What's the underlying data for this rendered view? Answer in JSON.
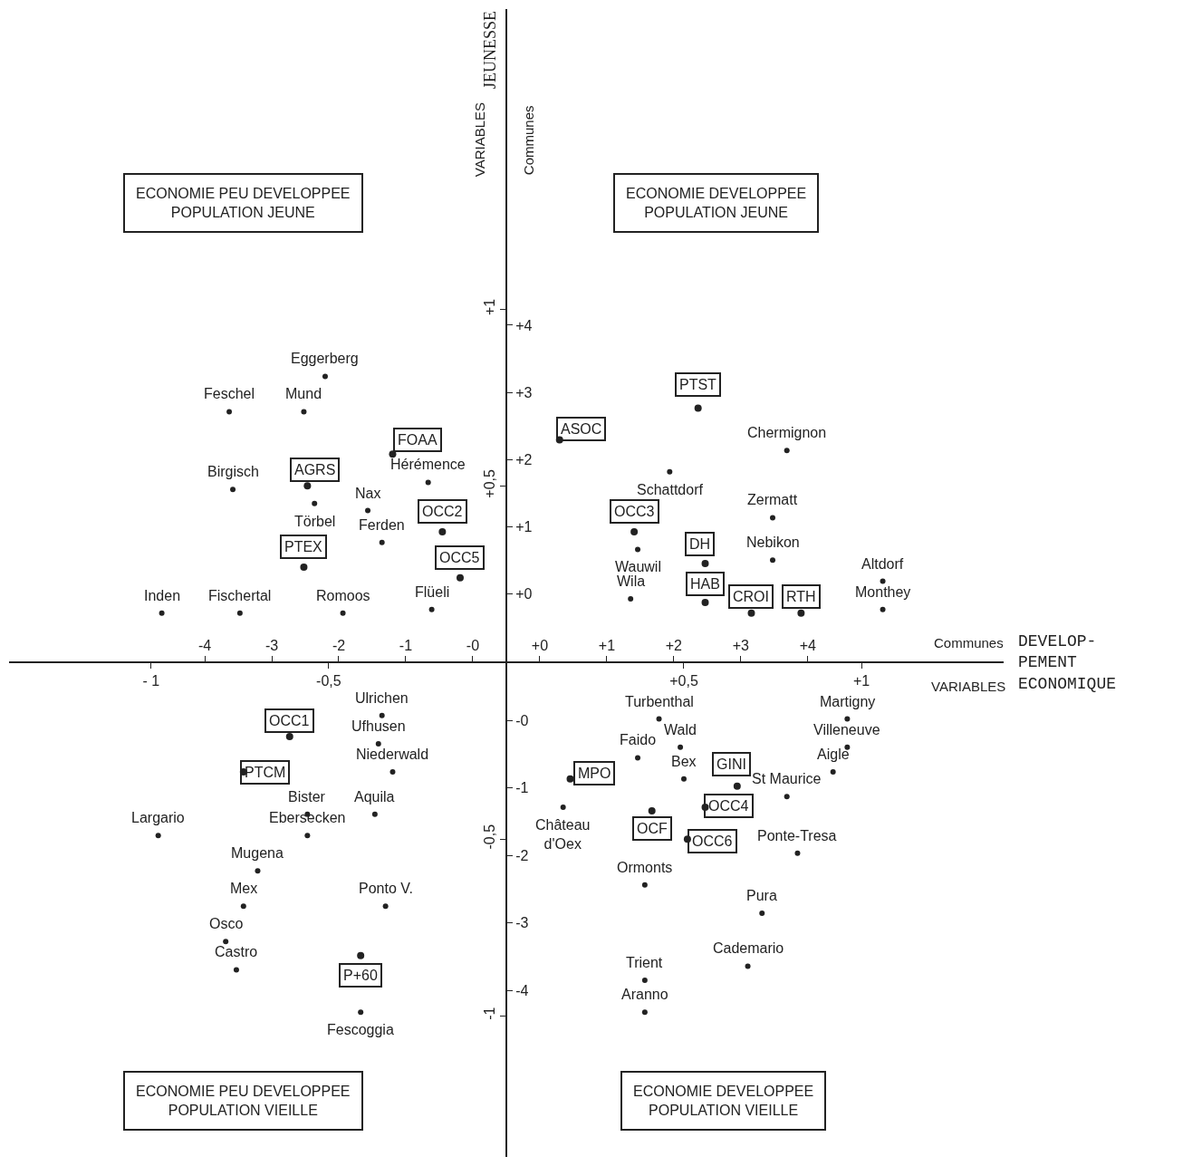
{
  "chart_data": {
    "type": "scatter",
    "xlabel": "VARIABLES",
    "x2label": "Communes",
    "ylabel": "VARIABLES",
    "y2label": "Communes",
    "xlim": [
      -1.4,
      1.4
    ],
    "ylim": [
      -1.4,
      1.85
    ],
    "x2lim": [
      -7.42,
      7.42
    ],
    "y2lim": [
      -8.39,
      8.71
    ],
    "y3lim": [
      -6.47,
      10.55
    ],
    "xticks": [
      {
        "value": -1,
        "label": "- 1"
      },
      {
        "value": -0.5,
        "label": "-0,5"
      },
      {
        "value": 0.5,
        "label": "+0,5"
      },
      {
        "value": 1,
        "label": "+1"
      }
    ],
    "yticks": [
      {
        "value": -1,
        "label": "-1"
      },
      {
        "value": -0.5,
        "label": "-0,5"
      },
      {
        "value": 0.5,
        "label": "+0,5"
      },
      {
        "value": 1,
        "label": "+1"
      }
    ],
    "x2ticks": [
      {
        "value": -4.5,
        "label": "-4"
      },
      {
        "value": -3.5,
        "label": "-3"
      },
      {
        "value": -2.5,
        "label": "-2"
      },
      {
        "value": -1.5,
        "label": "-1"
      },
      {
        "value": -0.5,
        "label": "-0"
      },
      {
        "value": 0.5,
        "label": "+0"
      },
      {
        "value": 1.5,
        "label": "+1"
      },
      {
        "value": 2.5,
        "label": "+2"
      },
      {
        "value": 3.5,
        "label": "+3"
      },
      {
        "value": 4.5,
        "label": "+4"
      }
    ],
    "y2ticks": [
      {
        "value": 0,
        "label": "+0"
      },
      {
        "value": 1,
        "label": "+1"
      },
      {
        "value": 2,
        "label": "+2"
      },
      {
        "value": 3,
        "label": "+3"
      },
      {
        "value": 4,
        "label": "+4"
      }
    ],
    "y3ticks": [
      -4,
      -3,
      -2,
      -1,
      {
        "value": 0,
        "label": "-0"
      }
    ],
    "grid": false,
    "marker": "circle",
    "series": [
      {
        "color": "#222222",
        "x": [
          0.54,
          0.15,
          -0.32,
          -0.56,
          -0.18,
          -0.57,
          -0.13,
          0.36,
          0.56,
          0.56,
          0.69,
          0.83,
          -0.61,
          -0.74,
          0.18,
          0.65,
          0.56,
          0.41,
          0.51,
          -0.41
        ],
        "values": [
          0.72,
          0.63,
          0.59,
          0.5,
          0.37,
          0.27,
          0.24,
          0.37,
          0.28,
          0.17,
          0.14,
          0.14,
          -0.21,
          -0.31,
          -0.33,
          -0.35,
          -0.41,
          -0.42,
          -0.5,
          -0.83
        ]
      },
      {
        "color": "#222222",
        "x": [
          -0.51,
          -0.78,
          -0.57,
          -0.77,
          -0.54,
          -0.22,
          -0.39,
          -0.35,
          -0.97,
          -0.75,
          -0.46,
          -0.21,
          0.46,
          0.79,
          0.75,
          0.37,
          0.75,
          0.35,
          1.06,
          1.06,
          -0.35,
          -0.36,
          -0.32,
          -0.56,
          -0.37,
          -0.56,
          -0.98,
          -0.7,
          -0.74,
          -0.34,
          -0.79,
          -0.76,
          -0.41,
          0.43,
          0.96,
          0.96,
          0.92,
          0.49,
          0.37,
          0.5,
          0.79,
          0.16,
          0.82,
          0.39,
          0.72,
          0.68,
          0.39,
          0.39
        ],
        "values": [
          0.81,
          0.71,
          0.71,
          0.49,
          0.45,
          0.51,
          0.43,
          0.34,
          0.14,
          0.14,
          0.14,
          0.15,
          0.54,
          0.6,
          0.41,
          0.32,
          0.29,
          0.18,
          0.23,
          0.15,
          -0.15,
          -0.23,
          -0.31,
          -0.43,
          -0.43,
          -0.49,
          -0.49,
          -0.59,
          -0.69,
          -0.69,
          -0.79,
          -0.87,
          -0.99,
          -0.16,
          -0.16,
          -0.24,
          -0.31,
          -0.24,
          -0.27,
          -0.33,
          -0.38,
          -0.41,
          -0.54,
          -0.63,
          -0.71,
          -0.86,
          -0.9,
          -0.99
        ]
      }
    ],
    "annotations": [
      "JEUNESSE",
      "DEVELOP-\nPEMENT\nECONOMIQUE",
      "ECONOMIE PEU DEVELOPPEE\nPOPULATION JEUNE",
      "ECONOMIE DEVELOPPEE\nPOPULATION JEUNE",
      "ECONOMIE PEU DEVELOPPEE\nPOPULATION VIEILLE",
      "ECONOMIE DEVELOPPEE\nPOPULATION VIEILLE",
      {
        "text": "PTST",
        "x": 0.54,
        "y": 0.72
      },
      {
        "text": "ASOC",
        "x": 0.15,
        "y": 0.63
      },
      {
        "text": "FOAA",
        "x": -0.32,
        "y": 0.59
      },
      {
        "text": "AGRS",
        "x": -0.56,
        "y": 0.5
      },
      {
        "text": "OCC2",
        "x": -0.18,
        "y": 0.37
      },
      {
        "text": "PTEX",
        "x": -0.57,
        "y": 0.27
      },
      {
        "text": "OCC5",
        "x": -0.13,
        "y": 0.24
      },
      {
        "text": "OCC3",
        "x": 0.36,
        "y": 0.37
      },
      {
        "text": "DH",
        "x": 0.56,
        "y": 0.28
      },
      {
        "text": "HAB",
        "x": 0.56,
        "y": 0.17
      },
      {
        "text": "CROI",
        "x": 0.69,
        "y": 0.14
      },
      {
        "text": "RTH",
        "x": 0.83,
        "y": 0.14
      },
      {
        "text": "OCC1",
        "x": -0.61,
        "y": -0.21
      },
      {
        "text": "PTCM",
        "x": -0.74,
        "y": -0.31
      },
      {
        "text": "MPO",
        "x": 0.18,
        "y": -0.33
      },
      {
        "text": "GINI",
        "x": 0.65,
        "y": -0.35
      },
      {
        "text": "OCC4",
        "x": 0.56,
        "y": -0.41
      },
      {
        "text": "OCF",
        "x": 0.41,
        "y": -0.42
      },
      {
        "text": "OCC6",
        "x": 0.51,
        "y": -0.5
      },
      {
        "text": "P+60",
        "x": -0.41,
        "y": -0.83
      },
      {
        "text": "Eggerberg",
        "x": -0.51,
        "y": 0.81
      },
      {
        "text": "Feschel",
        "x": -0.78,
        "y": 0.71
      },
      {
        "text": "Mund",
        "x": -0.57,
        "y": 0.71
      },
      {
        "text": "Birgisch",
        "x": -0.77,
        "y": 0.49
      },
      {
        "text": "Törbel",
        "x": -0.54,
        "y": 0.45
      },
      {
        "text": "Hérémence",
        "x": -0.22,
        "y": 0.51
      },
      {
        "text": "Nax",
        "x": -0.39,
        "y": 0.43
      },
      {
        "text": "Ferden",
        "x": -0.35,
        "y": 0.34
      },
      {
        "text": "Inden",
        "x": -0.97,
        "y": 0.14
      },
      {
        "text": "Fischertal",
        "x": -0.75,
        "y": 0.14
      },
      {
        "text": "Romoos",
        "x": -0.46,
        "y": 0.14
      },
      {
        "text": "Flüeli",
        "x": -0.21,
        "y": 0.15
      },
      {
        "text": "Schattdorf",
        "x": 0.46,
        "y": 0.54
      },
      {
        "text": "Chermignon",
        "x": 0.79,
        "y": 0.6
      },
      {
        "text": "Zermatt",
        "x": 0.75,
        "y": 0.41
      },
      {
        "text": "Wauwil",
        "x": 0.37,
        "y": 0.32
      },
      {
        "text": "Nebikon",
        "x": 0.75,
        "y": 0.29
      },
      {
        "text": "Wila",
        "x": 0.35,
        "y": 0.18
      },
      {
        "text": "Altdorf",
        "x": 1.06,
        "y": 0.23
      },
      {
        "text": "Monthey",
        "x": 1.06,
        "y": 0.15
      },
      {
        "text": "Ulrichen",
        "x": -0.35,
        "y": -0.15
      },
      {
        "text": "Ufhusen",
        "x": -0.36,
        "y": -0.23
      },
      {
        "text": "Niederwald",
        "x": -0.32,
        "y": -0.31
      },
      {
        "text": "Bister",
        "x": -0.56,
        "y": -0.43
      },
      {
        "text": "Aquila",
        "x": -0.37,
        "y": -0.43
      },
      {
        "text": "Ebersecken",
        "x": -0.56,
        "y": -0.49
      },
      {
        "text": "Largario",
        "x": -0.98,
        "y": -0.49
      },
      {
        "text": "Mugena",
        "x": -0.7,
        "y": -0.59
      },
      {
        "text": "Mex",
        "x": -0.74,
        "y": -0.69
      },
      {
        "text": "Ponto V.",
        "x": -0.34,
        "y": -0.69
      },
      {
        "text": "Osco",
        "x": -0.79,
        "y": -0.79
      },
      {
        "text": "Castro",
        "x": -0.76,
        "y": -0.87
      },
      {
        "text": "Fescoggia",
        "x": -0.41,
        "y": -0.99
      },
      {
        "text": "Turbenthal",
        "x": 0.43,
        "y": -0.16
      },
      {
        "text": "Martigny",
        "x": 0.96,
        "y": -0.16
      },
      {
        "text": "Villeneuve",
        "x": 0.96,
        "y": -0.24
      },
      {
        "text": "Aigle",
        "x": 0.92,
        "y": -0.31
      },
      {
        "text": "Wald",
        "x": 0.49,
        "y": -0.24
      },
      {
        "text": "Faido",
        "x": 0.37,
        "y": -0.27
      },
      {
        "text": "Bex",
        "x": 0.5,
        "y": -0.33
      },
      {
        "text": "St Maurice",
        "x": 0.79,
        "y": -0.38
      },
      {
        "text": "Château\nd'Oex",
        "x": 0.16,
        "y": -0.41
      },
      {
        "text": "Ponte-Tresa",
        "x": 0.82,
        "y": -0.54
      },
      {
        "text": "Ormonts",
        "x": 0.39,
        "y": -0.63
      },
      {
        "text": "Pura",
        "x": 0.72,
        "y": -0.71
      },
      {
        "text": "Cademario",
        "x": 0.68,
        "y": -0.86
      },
      {
        "text": "Trient",
        "x": 0.39,
        "y": -0.9
      },
      {
        "text": "Aranno",
        "x": 0.39,
        "y": -0.99
      }
    ]
  }
}
